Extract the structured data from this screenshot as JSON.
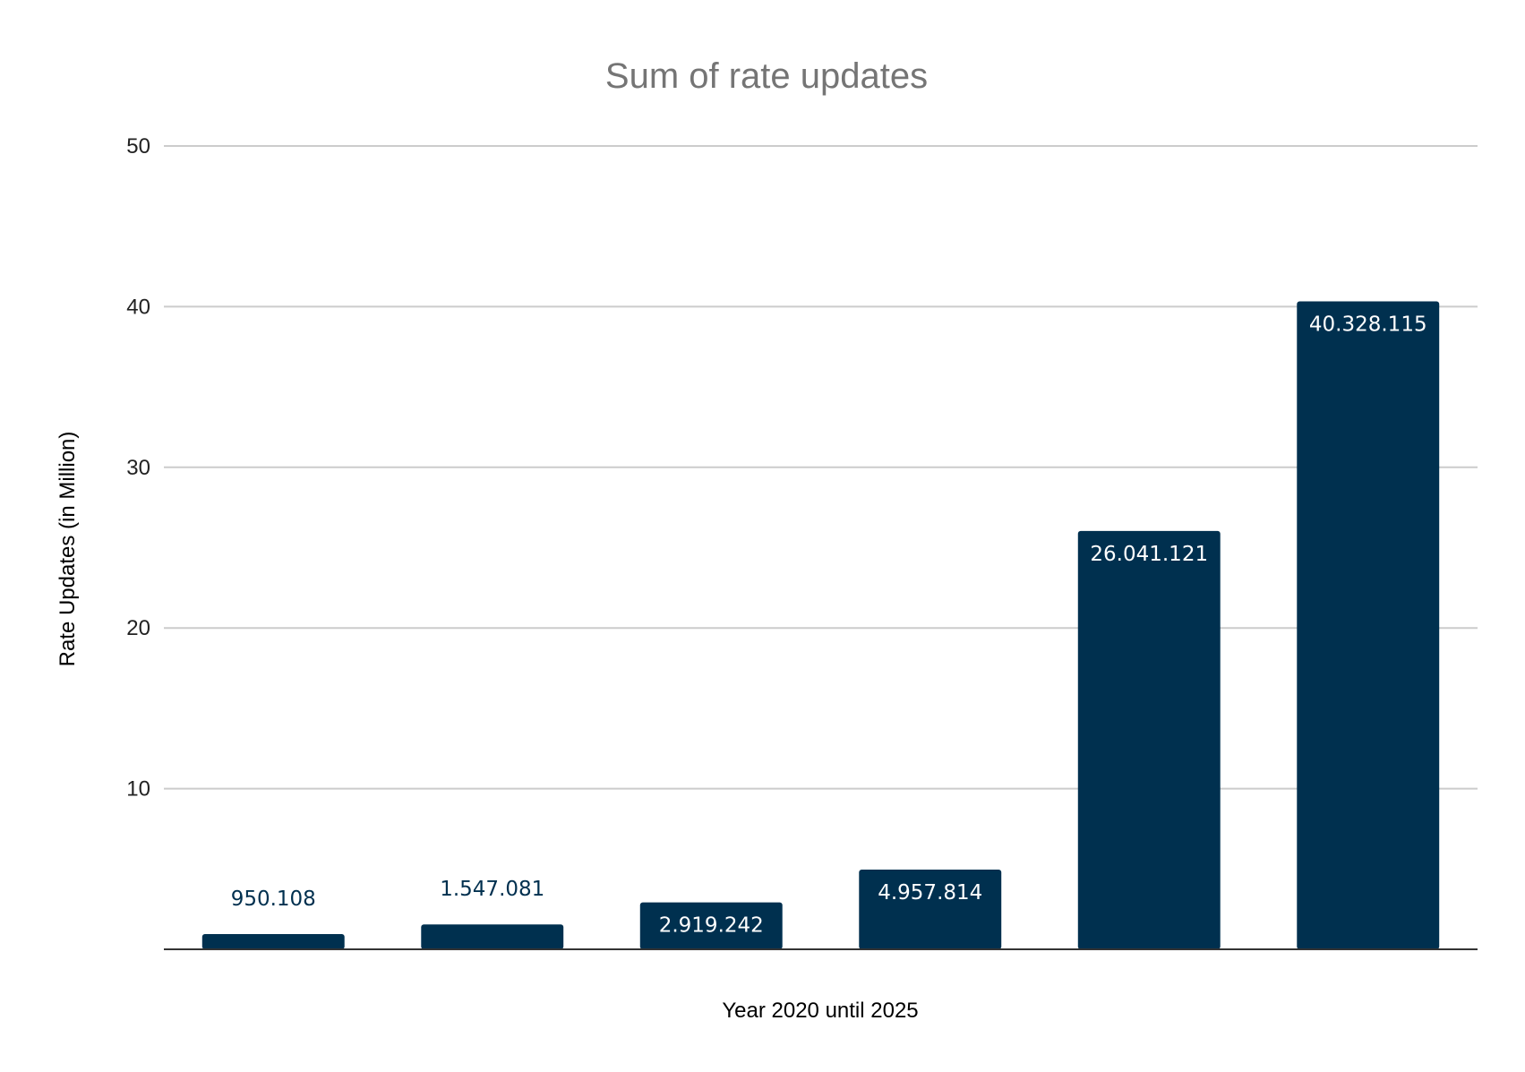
{
  "chart_data": {
    "type": "bar",
    "title": "Sum of rate updates",
    "xlabel": "Year 2020 until 2025",
    "ylabel": "Rate Updates (in Million)",
    "ylim": [
      0,
      50
    ],
    "yticks": [
      10,
      20,
      30,
      40,
      50
    ],
    "grid": true,
    "legend": "none",
    "series": [
      {
        "values": [
          0.950108,
          1.547081,
          2.919242,
          4.957814,
          26.041121,
          40.328115
        ],
        "data_labels": [
          "950.108",
          "1.547.081",
          "2.919.242",
          "4.957.814",
          "26.041.121",
          "40.328.115"
        ]
      }
    ],
    "colors": {
      "bar": "#00304f",
      "title": "#757575",
      "label_outside": "#00304f",
      "label_inside": "#ffffff",
      "grid": "#cccccc",
      "baseline": "#333333"
    }
  }
}
